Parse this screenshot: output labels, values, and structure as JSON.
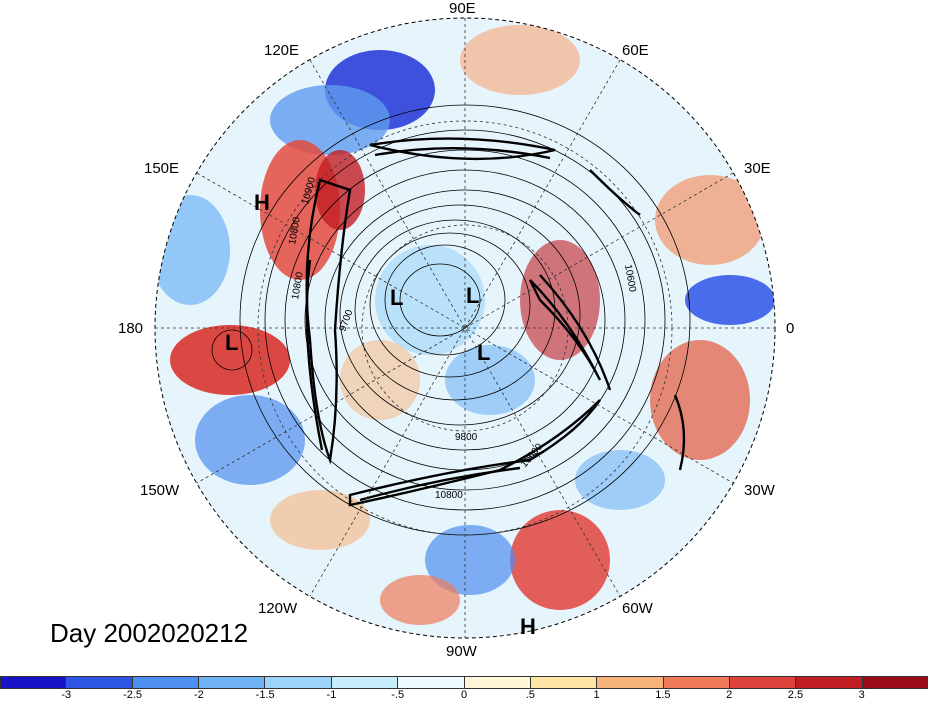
{
  "map": {
    "title": "Day 2002020212",
    "longitude_labels": {
      "lon_90e": "90E",
      "lon_60e": "60E",
      "lon_30e": "30E",
      "lon_0": "0",
      "lon_30w": "30W",
      "lon_60w": "60W",
      "lon_90w": "90W",
      "lon_120w": "120W",
      "lon_150w": "150W",
      "lon_180": "180",
      "lon_150e": "150E",
      "lon_120e": "120E"
    },
    "pressure_centers": {
      "h_pacific": "H",
      "h_atlantic_south": "H",
      "l_pacific": "L",
      "l_arctic_1": "L",
      "l_arctic_2": "L",
      "l_arctic_3": "L"
    },
    "contour_labels": [
      "10900",
      "10800",
      "9700",
      "9800",
      "10600",
      "10800",
      "10600",
      "10800"
    ]
  },
  "colorbar": {
    "ticks": [
      "-3",
      "-2.5",
      "-2",
      "-1.5",
      "-1",
      "-.5",
      "0",
      ".5",
      "1",
      "1.5",
      "2",
      "2.5",
      "3"
    ],
    "colors": [
      "#1a12c8",
      "#2d55e6",
      "#4f8ff0",
      "#6fb3f5",
      "#9bd3f9",
      "#c7ecfc",
      "#eefaff",
      "#fff6d8",
      "#fde3a4",
      "#f7b27a",
      "#ee7a5a",
      "#e0433d",
      "#c01e25",
      "#9c0a1c"
    ]
  }
}
